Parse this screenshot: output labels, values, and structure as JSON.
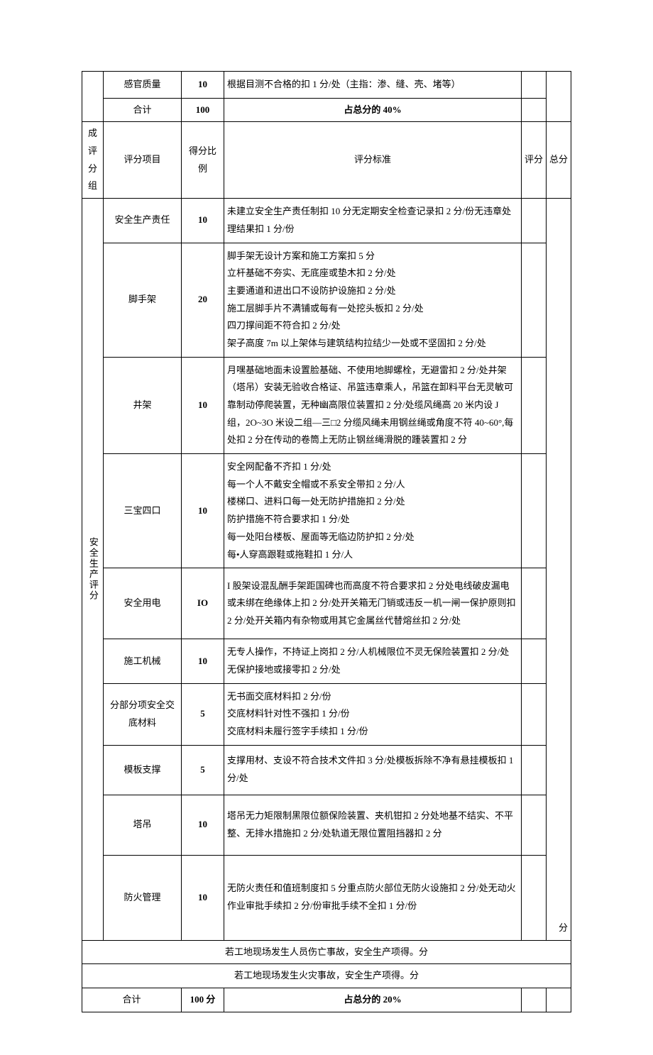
{
  "top_rows": {
    "sensory": {
      "item": "感官质量",
      "ratio": "10",
      "standard": "根据目测不合格的扣 1 分/处（主指：渗、缝、壳、堵等）"
    },
    "subtotal": {
      "item": "合计",
      "ratio": "100",
      "standard": "占总分的 40%"
    }
  },
  "header": {
    "group": "成 评分 组",
    "item": "评分项目",
    "ratio": "得分比例",
    "standard": "评分标准",
    "score": "评分",
    "total": "总分"
  },
  "group_label": "安全生产评分",
  "rows": [
    {
      "item": "安全生产责任",
      "ratio": "10",
      "standard": "未建立安全生产责任制扣 10 分无定期安全检查记录扣 2 分/份无违章处理结果扣 1 分/份",
      "cls": "row-h10"
    },
    {
      "item": "脚手架",
      "ratio": "20",
      "standard": "脚手架无设计方案和施工方案扣 5 分\n立杆基础不夯实、无底座或垫木扣 2 分/处\n主要通道和进出口不设防护设施扣 2 分/处\n施工层脚手片不满铺或每有一处挖头板扣 2 分/处\n四刀撑间距不符合扣 2 分/处\n架子高度 7m 以上架体与建筑结构拉结少一处或不坚固扣 2 分/处",
      "cls": "row-h20"
    },
    {
      "item": "井架",
      "ratio": "10",
      "standard": "月嘿基础地面未设置脸基础、不使用地脚螺栓，无避雷扣 2 分/处井架（塔吊）安装无验收合格证、吊篮违章乘人，吊篮在卸料平台无灵敏可靠制动停爬装置，无种幽高限位装置扣 2 分/处缆风绳高 20 米内设 J 组，2O~3O 米设二组—三□2 分缆风绳未用钢丝绳或角度不符 40~60°,每处扣 2 分在传动的卷筒上无防止钢丝绳滑脱的踵装置扣 2 分",
      "cls": "row-h15"
    },
    {
      "item": "三宝四口",
      "ratio": "10",
      "standard": "安全网配备不齐扣 1 分/处\n每一个人不戴安全帽或不系安全带扣 2 分/人\n楼梯口、进料口每一处无防护措施扣 2 分/处\n防护措施不符合要求扣 1 分/处\n每一处阳台楼板、屋面等无临边防护扣 2 分/处\n每•人穿高跟鞋或拖鞋扣 1 分/人",
      "cls": "row-h20"
    },
    {
      "item": "安全用电",
      "ratio": "IO",
      "standard": "I 股架设混乱酬手架距国碑也而高度不符合要求扣 2 分处电线破皮漏电或未绑在绝缘体上扣 2 分/处开关箱无门销或违反一机一闸一保护原则扣 2 分/处开关箱内有杂物或用其它金属丝代替熔丝扣 2 分/处",
      "cls": "row-h12"
    },
    {
      "item": "施工机械",
      "ratio": "10",
      "standard": "无专人操作，不持证上岗扣 2 分/人机械限位不灵无保险装置扣 2 分/处无保护接地或接零扣 2 分/处",
      "cls": "row-h10"
    },
    {
      "item": "分部分项安全交底材料",
      "ratio": "5",
      "standard": "无书面交底材料扣 2 分/份\n交底材料针对性不强扣 1 分/份\n交底材料未履行签字手续扣 1 分/份",
      "cls": "row-h5"
    },
    {
      "item": "模板支撑",
      "ratio": "5",
      "standard": "支撑用材、支设不符合技术文件扣 3 分/处模板拆除不净有悬挂模板扣 1 分/处",
      "cls": "row-h5"
    },
    {
      "item": "塔吊",
      "ratio": "10",
      "standard": "塔吊无力矩限制黑限位额保险装置、夹机钳扣 2 分处地基不结实、不平整、无排水措施扣 2 分/处轨道无限位置阻挡器扣 2 分",
      "cls": "row-h8"
    },
    {
      "item": "防火管理",
      "ratio": "10",
      "standard": "无防火责任和值班制度扣 5 分重点防火部位无防火设施扣 2 分/处无动火作业审批手续扣 2 分/份审批手续不全扣 1 分/份",
      "cls": "row-h18",
      "total_suffix": "分"
    }
  ],
  "footer": {
    "note1": "若工地现场发生人员伤亡事故，安全生产项得。分",
    "note2": "若工地现场发生火灾事故，安全生产项得。分",
    "subtotal_label": "合计",
    "subtotal_ratio": "100 分",
    "subtotal_standard": "占总分的 20%"
  }
}
